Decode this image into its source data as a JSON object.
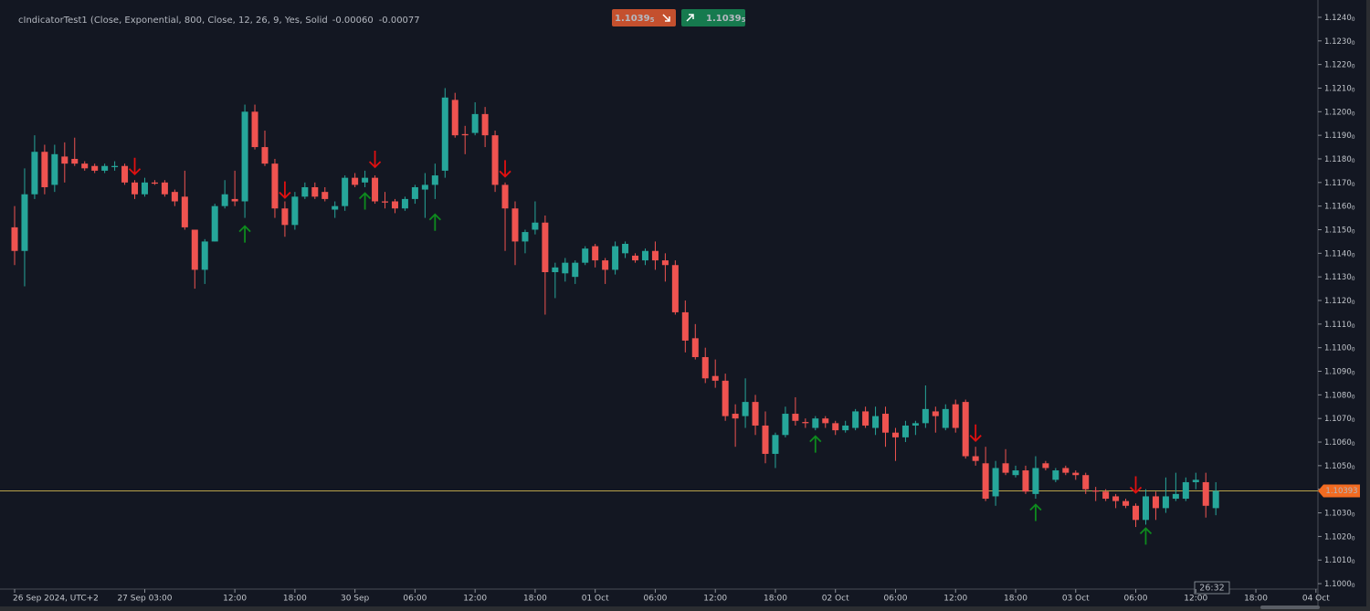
{
  "chart_data": {
    "type": "candlestick",
    "title": "cIndicatorTest1 (Close, Exponential, 800, Close, 12, 26, 9, Yes, Solid",
    "indicator_values": [
      {
        "value": -0.0006,
        "label": "-0.00060",
        "color": "#2b35ff"
      },
      {
        "value": -0.00077,
        "label": "-0.00077",
        "color": "#ff9a1a"
      }
    ],
    "sell_price": {
      "value": 1.10395,
      "label": "1.10395",
      "color": "#c4502e"
    },
    "buy_price": {
      "value": 1.10395,
      "label": "1.10395",
      "color": "#167a4e"
    },
    "price_line": {
      "value": 1.10393,
      "label": "1.10393",
      "color": "#b9a24a",
      "tag_color": "#f26b21"
    },
    "countdown": "26:32",
    "up_color": "#26a69a",
    "down_color": "#ef5350",
    "sell_signal_color": "#e01010",
    "buy_signal_color": "#0e8a1e",
    "grid": false,
    "ylim": [
      1.09977,
      1.12454
    ],
    "yticks": [
      {
        "value": 1.124,
        "label": "1.12400"
      },
      {
        "value": 1.123,
        "label": "1.12300"
      },
      {
        "value": 1.122,
        "label": "1.12200"
      },
      {
        "value": 1.121,
        "label": "1.12100"
      },
      {
        "value": 1.12,
        "label": "1.12000"
      },
      {
        "value": 1.119,
        "label": "1.11900"
      },
      {
        "value": 1.118,
        "label": "1.11800"
      },
      {
        "value": 1.117,
        "label": "1.11700"
      },
      {
        "value": 1.116,
        "label": "1.11600"
      },
      {
        "value": 1.115,
        "label": "1.11500"
      },
      {
        "value": 1.114,
        "label": "1.11400"
      },
      {
        "value": 1.113,
        "label": "1.11300"
      },
      {
        "value": 1.112,
        "label": "1.11200"
      },
      {
        "value": 1.111,
        "label": "1.11100"
      },
      {
        "value": 1.11,
        "label": "1.11000"
      },
      {
        "value": 1.109,
        "label": "1.10900"
      },
      {
        "value": 1.108,
        "label": "1.10800"
      },
      {
        "value": 1.107,
        "label": "1.10700"
      },
      {
        "value": 1.106,
        "label": "1.10600"
      },
      {
        "value": 1.105,
        "label": "1.10500"
      },
      {
        "value": 1.104,
        "label": "1.10400"
      },
      {
        "value": 1.103,
        "label": "1.10300"
      },
      {
        "value": 1.102,
        "label": "1.10200"
      },
      {
        "value": 1.101,
        "label": "1.10100"
      },
      {
        "value": 1.1,
        "label": "1.10000"
      }
    ],
    "categories": [
      "26 Sep 2024, UTC+2",
      null,
      null,
      null,
      null,
      null,
      null,
      null,
      null,
      null,
      null,
      null,
      null,
      "27 Sep 03:00",
      null,
      null,
      null,
      null,
      null,
      null,
      null,
      null,
      "12:00",
      null,
      null,
      null,
      null,
      null,
      "18:00",
      null,
      null,
      null,
      null,
      null,
      "30 Sep",
      null,
      null,
      null,
      null,
      null,
      "06:00",
      null,
      null,
      null,
      null,
      null,
      "12:00",
      null,
      null,
      null,
      null,
      null,
      "18:00",
      null,
      null,
      null,
      null,
      null,
      "01 Oct",
      null,
      null,
      null,
      null,
      null,
      "06:00",
      null,
      null,
      null,
      null,
      null,
      "12:00",
      null,
      null,
      null,
      null,
      null,
      "18:00",
      null,
      null,
      null,
      null,
      null,
      "02 Oct",
      null,
      null,
      null,
      null,
      null,
      "06:00",
      null,
      null,
      null,
      null,
      null,
      "12:00",
      null,
      null,
      null,
      null,
      null,
      "18:00",
      null,
      null,
      null,
      null,
      null,
      "03 Oct",
      null,
      null,
      null,
      null,
      null,
      "06:00",
      null,
      null,
      null,
      null,
      null,
      "12:00",
      null,
      null,
      null,
      null,
      null,
      "18:00",
      null,
      null,
      null,
      null,
      null,
      "04 Oct"
    ],
    "open": [
      1.1151,
      1.1141,
      1.1165,
      1.1183,
      1.1169,
      1.1181,
      1.118,
      1.1178,
      1.1177,
      1.1175,
      1.11765,
      1.1177,
      1.117,
      1.1165,
      1.117,
      1.117,
      1.1166,
      1.1164,
      1.115,
      1.1133,
      1.1145,
      1.116,
      1.1163,
      1.1162,
      1.12,
      1.1185,
      1.1178,
      1.1159,
      1.1152,
      1.1164,
      1.1168,
      1.1166,
      1.11585,
      1.116,
      1.1172,
      1.117,
      1.1172,
      1.1162,
      1.1162,
      1.1159,
      1.1163,
      1.1167,
      1.1169,
      1.1175,
      1.1205,
      1.11905,
      1.1191,
      1.1199,
      1.119,
      1.1169,
      1.1159,
      1.1145,
      1.115,
      1.1153,
      1.1132,
      1.11315,
      1.113,
      1.1136,
      1.1143,
      1.1137,
      1.1133,
      1.114,
      1.1139,
      1.1137,
      1.1141,
      1.1137,
      1.1135,
      1.1115,
      1.1104,
      1.1096,
      1.1088,
      1.1086,
      1.1072,
      1.1071,
      1.1077,
      1.1067,
      1.1055,
      1.1063,
      1.1072,
      1.10685,
      1.1066,
      1.107,
      1.1068,
      1.1065,
      1.1066,
      1.1073,
      1.1066,
      1.1072,
      1.1064,
      1.1062,
      1.1067,
      1.1068,
      1.1073,
      1.1066,
      1.1076,
      1.1077,
      1.1054,
      1.1051,
      1.1037,
      1.1051,
      1.1046,
      1.1048,
      1.1038,
      1.1051,
      1.1044,
      1.1049,
      1.1047,
      1.1046,
      1.10395,
      1.1039,
      1.1037,
      1.1035,
      1.1033,
      1.1027,
      1.1037,
      1.1032,
      1.1036,
      1.1036,
      1.1043,
      1.1043,
      1.1032,
      null,
      null,
      null,
      null,
      null,
      null,
      null,
      null,
      null,
      null
    ],
    "high": [
      1.116,
      1.1176,
      1.119,
      1.1186,
      1.1186,
      1.1187,
      1.1189,
      1.1179,
      1.1178,
      1.1178,
      1.1179,
      1.1178,
      1.1171,
      1.1172,
      1.1171,
      1.1171,
      1.1167,
      1.1175,
      1.115,
      1.1146,
      1.1161,
      1.1171,
      1.1175,
      1.1203,
      1.1203,
      1.1192,
      1.118,
      1.1162,
      1.1166,
      1.117,
      1.117,
      1.1168,
      1.1162,
      1.1173,
      1.1174,
      1.1175,
      1.1173,
      1.1166,
      1.1163,
      1.1164,
      1.1169,
      1.1174,
      1.1178,
      1.121,
      1.1208,
      1.1194,
      1.1204,
      1.1202,
      1.1192,
      1.117,
      1.1162,
      1.115,
      1.1162,
      1.1156,
      1.1136,
      1.1138,
      1.1137,
      1.1143,
      1.1144,
      1.1138,
      1.1145,
      1.1145,
      1.114,
      1.1142,
      1.1145,
      1.114,
      1.1137,
      1.112,
      1.111,
      1.11,
      1.1095,
      1.1089,
      1.1076,
      1.1087,
      1.108,
      1.1073,
      1.1064,
      1.1075,
      1.1079,
      1.107,
      1.1071,
      1.1071,
      1.1069,
      1.1069,
      1.1074,
      1.1075,
      1.1075,
      1.1075,
      1.1066,
      1.1069,
      1.1069,
      1.1084,
      1.1075,
      1.1076,
      1.1078,
      1.1078,
      1.1058,
      1.1058,
      1.1052,
      1.1057,
      1.105,
      1.105,
      1.1054,
      1.1052,
      1.1049,
      1.105,
      1.1048,
      1.1047,
      1.1041,
      1.104,
      1.1038,
      1.1036,
      1.1034,
      1.104,
      1.1039,
      1.1045,
      1.1047,
      1.1045,
      1.1047,
      1.1047,
      1.1043,
      null,
      null,
      null,
      null,
      null,
      null,
      null,
      null,
      null,
      null
    ],
    "low": [
      1.1135,
      1.1126,
      1.1163,
      1.1165,
      1.1166,
      1.117,
      1.1177,
      1.1175,
      1.1174,
      1.1174,
      1.1175,
      1.1169,
      1.1163,
      1.1164,
      1.1169,
      1.1164,
      1.116,
      1.115,
      1.1125,
      1.1127,
      1.1145,
      1.1159,
      1.116,
      1.1155,
      1.1184,
      1.1177,
      1.1155,
      1.1147,
      1.115,
      1.1163,
      1.1163,
      1.1162,
      1.1155,
      1.1158,
      1.1168,
      1.1168,
      1.1161,
      1.1159,
      1.1157,
      1.1158,
      1.1161,
      1.1155,
      1.1163,
      1.1172,
      1.1189,
      1.1182,
      1.119,
      1.1185,
      1.1166,
      1.1141,
      1.1135,
      1.114,
      1.1148,
      1.1114,
      1.1121,
      1.1128,
      1.1127,
      1.1135,
      1.1134,
      1.1127,
      1.1131,
      1.1138,
      1.1136,
      1.1135,
      1.1133,
      1.1128,
      1.1114,
      1.1098,
      1.1095,
      1.1085,
      1.1083,
      1.1069,
      1.1058,
      1.1066,
      1.1063,
      1.1051,
      1.1049,
      1.1062,
      1.1067,
      1.1066,
      1.1065,
      1.1066,
      1.1063,
      1.1064,
      1.1065,
      1.1066,
      1.1063,
      1.1058,
      1.1052,
      1.106,
      1.1063,
      1.1066,
      1.1064,
      1.1065,
      1.1064,
      1.1053,
      1.105,
      1.1035,
      1.1033,
      1.1046,
      1.1045,
      1.1038,
      1.1036,
      1.1048,
      1.1043,
      1.1046,
      1.1044,
      1.1038,
      1.1035,
      1.1035,
      1.1032,
      1.1032,
      1.1024,
      1.1025,
      1.1027,
      1.103,
      1.1035,
      1.1035,
      1.104,
      1.1028,
      1.1029,
      null,
      null,
      null,
      null,
      null,
      null,
      null,
      null,
      null,
      null
    ],
    "close": [
      1.1141,
      1.1165,
      1.1183,
      1.1168,
      1.1182,
      1.1178,
      1.1178,
      1.1176,
      1.1175,
      1.1177,
      1.1177,
      1.117,
      1.1165,
      1.117,
      1.11695,
      1.1165,
      1.1162,
      1.1151,
      1.1133,
      1.1145,
      1.116,
      1.1165,
      1.1162,
      1.12,
      1.1185,
      1.1178,
      1.1159,
      1.1152,
      1.1164,
      1.1168,
      1.1164,
      1.1163,
      1.116,
      1.1172,
      1.1169,
      1.1172,
      1.1162,
      1.11615,
      1.1159,
      1.1163,
      1.1168,
      1.1169,
      1.1173,
      1.1206,
      1.119,
      1.119,
      1.1199,
      1.119,
      1.1169,
      1.1159,
      1.1145,
      1.1149,
      1.1153,
      1.1132,
      1.1134,
      1.1136,
      1.1136,
      1.1142,
      1.1137,
      1.1133,
      1.1143,
      1.1144,
      1.1137,
      1.1141,
      1.1137,
      1.1135,
      1.1115,
      1.1103,
      1.1096,
      1.1087,
      1.1086,
      1.1071,
      1.107,
      1.1077,
      1.1067,
      1.1055,
      1.1063,
      1.1072,
      1.1069,
      1.1068,
      1.107,
      1.1068,
      1.1065,
      1.1067,
      1.1073,
      1.1067,
      1.1071,
      1.1064,
      1.1062,
      1.1067,
      1.1068,
      1.1074,
      1.1071,
      1.1074,
      1.1066,
      1.1054,
      1.1052,
      1.1036,
      1.1049,
      1.1047,
      1.1048,
      1.1039,
      1.1049,
      1.1049,
      1.1048,
      1.1047,
      1.1046,
      1.104,
      1.1039,
      1.1036,
      1.1035,
      1.1033,
      1.1027,
      1.1037,
      1.1032,
      1.1037,
      1.1038,
      1.1043,
      1.1044,
      1.1033,
      1.10393,
      null,
      null,
      null,
      null,
      null,
      null,
      null,
      null,
      null,
      null
    ],
    "sell_signals": [
      null,
      null,
      null,
      null,
      null,
      null,
      null,
      null,
      null,
      null,
      null,
      null,
      1.1177,
      null,
      null,
      null,
      null,
      null,
      null,
      null,
      null,
      null,
      null,
      null,
      null,
      null,
      null,
      1.1167,
      null,
      null,
      null,
      null,
      null,
      null,
      null,
      null,
      1.118,
      null,
      null,
      null,
      null,
      null,
      null,
      null,
      null,
      null,
      null,
      null,
      null,
      1.1176,
      null,
      null,
      null,
      null,
      null,
      null,
      null,
      null,
      null,
      null,
      null,
      null,
      null,
      null,
      null,
      null,
      null,
      null,
      null,
      null,
      null,
      null,
      null,
      null,
      null,
      null,
      null,
      null,
      null,
      null,
      null,
      null,
      null,
      null,
      null,
      null,
      null,
      null,
      null,
      null,
      null,
      null,
      null,
      null,
      null,
      null,
      1.1064,
      null,
      null,
      null,
      null,
      null,
      null,
      null,
      null,
      null,
      null,
      null,
      null,
      null,
      null,
      null,
      1.1042,
      null,
      null,
      null,
      null,
      null,
      null,
      null,
      null,
      null,
      null,
      null,
      null,
      null,
      null,
      null,
      null,
      null,
      null
    ],
    "buy_signals": [
      null,
      null,
      null,
      null,
      null,
      null,
      null,
      null,
      null,
      null,
      null,
      null,
      null,
      null,
      null,
      null,
      null,
      null,
      null,
      null,
      null,
      null,
      null,
      1.1148,
      null,
      null,
      null,
      null,
      null,
      null,
      null,
      null,
      null,
      null,
      null,
      1.1162,
      null,
      null,
      null,
      null,
      null,
      null,
      1.1153,
      null,
      null,
      null,
      null,
      null,
      null,
      null,
      null,
      null,
      null,
      null,
      null,
      null,
      null,
      null,
      null,
      null,
      null,
      null,
      null,
      null,
      null,
      null,
      null,
      null,
      null,
      null,
      null,
      null,
      null,
      null,
      null,
      null,
      null,
      null,
      null,
      null,
      1.1059,
      null,
      null,
      null,
      null,
      null,
      null,
      null,
      null,
      null,
      null,
      null,
      null,
      null,
      null,
      null,
      null,
      null,
      null,
      null,
      null,
      null,
      1.103,
      null,
      null,
      null,
      null,
      null,
      null,
      null,
      null,
      null,
      null,
      1.102,
      null,
      null,
      null,
      null,
      null,
      null,
      null,
      null,
      null,
      null,
      null,
      null,
      null,
      null,
      null,
      null,
      null
    ]
  }
}
